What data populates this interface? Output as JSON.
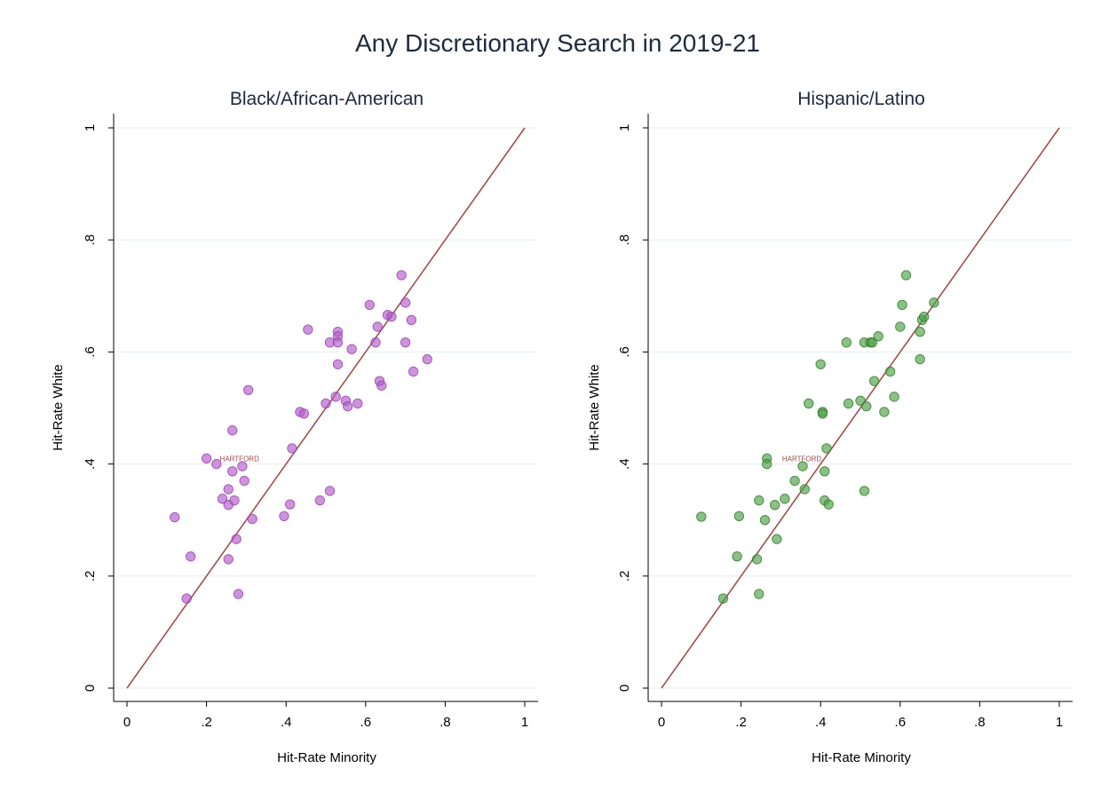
{
  "title": "Any Discretionary Search in 2019-21",
  "colors": {
    "background": "#ffffff",
    "grid": "#e4eeee",
    "fit_line": "#a0504c",
    "annotation": "#9b4a4a"
  },
  "chart_data": [
    {
      "type": "scatter",
      "title": "Black/African-American",
      "xlabel": "Hit-Rate Minority",
      "ylabel": "Hit-Rate White",
      "xlim": [
        0,
        1
      ],
      "ylim": [
        0,
        1
      ],
      "xticks": [
        0,
        0.2,
        0.4,
        0.6,
        0.8,
        1
      ],
      "xtick_labels": [
        "0",
        ".2",
        ".4",
        ".6",
        ".8",
        "1"
      ],
      "yticks": [
        0,
        0.2,
        0.4,
        0.6,
        0.8,
        1
      ],
      "ytick_labels": [
        "0",
        ".2",
        ".4",
        ".6",
        ".8",
        "1"
      ],
      "grid": true,
      "point_color": "#b05cc6",
      "point_edge": "#9a3fb3",
      "reference_line": {
        "from": [
          0,
          0
        ],
        "to": [
          1,
          1
        ]
      },
      "annotation": {
        "text": "HARTFORD",
        "x": 0.22,
        "y": 0.41
      },
      "points": [
        [
          0.12,
          0.305
        ],
        [
          0.15,
          0.16
        ],
        [
          0.16,
          0.235
        ],
        [
          0.2,
          0.41
        ],
        [
          0.225,
          0.4
        ],
        [
          0.24,
          0.338
        ],
        [
          0.255,
          0.355
        ],
        [
          0.255,
          0.327
        ],
        [
          0.255,
          0.23
        ],
        [
          0.265,
          0.46
        ],
        [
          0.265,
          0.387
        ],
        [
          0.27,
          0.335
        ],
        [
          0.275,
          0.266
        ],
        [
          0.28,
          0.168
        ],
        [
          0.29,
          0.396
        ],
        [
          0.295,
          0.37
        ],
        [
          0.305,
          0.532
        ],
        [
          0.315,
          0.302
        ],
        [
          0.395,
          0.307
        ],
        [
          0.41,
          0.328
        ],
        [
          0.415,
          0.428
        ],
        [
          0.435,
          0.493
        ],
        [
          0.445,
          0.49
        ],
        [
          0.455,
          0.64
        ],
        [
          0.485,
          0.335
        ],
        [
          0.5,
          0.508
        ],
        [
          0.51,
          0.617
        ],
        [
          0.51,
          0.352
        ],
        [
          0.525,
          0.52
        ],
        [
          0.53,
          0.636
        ],
        [
          0.53,
          0.628
        ],
        [
          0.53,
          0.617
        ],
        [
          0.53,
          0.578
        ],
        [
          0.55,
          0.513
        ],
        [
          0.555,
          0.503
        ],
        [
          0.565,
          0.605
        ],
        [
          0.58,
          0.508
        ],
        [
          0.61,
          0.684
        ],
        [
          0.625,
          0.617
        ],
        [
          0.63,
          0.645
        ],
        [
          0.635,
          0.548
        ],
        [
          0.64,
          0.54
        ],
        [
          0.655,
          0.666
        ],
        [
          0.665,
          0.663
        ],
        [
          0.69,
          0.737
        ],
        [
          0.7,
          0.688
        ],
        [
          0.7,
          0.617
        ],
        [
          0.715,
          0.657
        ],
        [
          0.72,
          0.565
        ],
        [
          0.755,
          0.587
        ]
      ]
    },
    {
      "type": "scatter",
      "title": "Hispanic/Latino",
      "xlabel": "Hit-Rate Minority",
      "ylabel": "Hit-Rate White",
      "xlim": [
        0,
        1
      ],
      "ylim": [
        0,
        1
      ],
      "xticks": [
        0,
        0.2,
        0.4,
        0.6,
        0.8,
        1
      ],
      "xtick_labels": [
        "0",
        ".2",
        ".4",
        ".6",
        ".8",
        "1"
      ],
      "yticks": [
        0,
        0.2,
        0.4,
        0.6,
        0.8,
        1
      ],
      "ytick_labels": [
        "0",
        ".2",
        ".4",
        ".6",
        ".8",
        "1"
      ],
      "grid": true,
      "point_color": "#4d9e47",
      "point_edge": "#2e7a2a",
      "reference_line": {
        "from": [
          0,
          0
        ],
        "to": [
          1,
          1
        ]
      },
      "annotation": {
        "text": "HARTFORD",
        "x": 0.29,
        "y": 0.41
      },
      "points": [
        [
          0.1,
          0.306
        ],
        [
          0.155,
          0.16
        ],
        [
          0.19,
          0.235
        ],
        [
          0.195,
          0.307
        ],
        [
          0.24,
          0.23
        ],
        [
          0.245,
          0.168
        ],
        [
          0.245,
          0.335
        ],
        [
          0.26,
          0.3
        ],
        [
          0.265,
          0.41
        ],
        [
          0.265,
          0.4
        ],
        [
          0.285,
          0.327
        ],
        [
          0.29,
          0.266
        ],
        [
          0.31,
          0.338
        ],
        [
          0.335,
          0.37
        ],
        [
          0.355,
          0.396
        ],
        [
          0.36,
          0.355
        ],
        [
          0.37,
          0.508
        ],
        [
          0.4,
          0.578
        ],
        [
          0.405,
          0.493
        ],
        [
          0.405,
          0.49
        ],
        [
          0.41,
          0.387
        ],
        [
          0.41,
          0.335
        ],
        [
          0.415,
          0.428
        ],
        [
          0.42,
          0.328
        ],
        [
          0.465,
          0.617
        ],
        [
          0.47,
          0.508
        ],
        [
          0.5,
          0.513
        ],
        [
          0.51,
          0.617
        ],
        [
          0.51,
          0.352
        ],
        [
          0.515,
          0.503
        ],
        [
          0.525,
          0.617
        ],
        [
          0.53,
          0.617
        ],
        [
          0.535,
          0.548
        ],
        [
          0.545,
          0.628
        ],
        [
          0.56,
          0.493
        ],
        [
          0.575,
          0.565
        ],
        [
          0.585,
          0.52
        ],
        [
          0.6,
          0.645
        ],
        [
          0.605,
          0.684
        ],
        [
          0.615,
          0.737
        ],
        [
          0.65,
          0.587
        ],
        [
          0.65,
          0.636
        ],
        [
          0.655,
          0.657
        ],
        [
          0.66,
          0.663
        ],
        [
          0.685,
          0.688
        ]
      ]
    }
  ]
}
